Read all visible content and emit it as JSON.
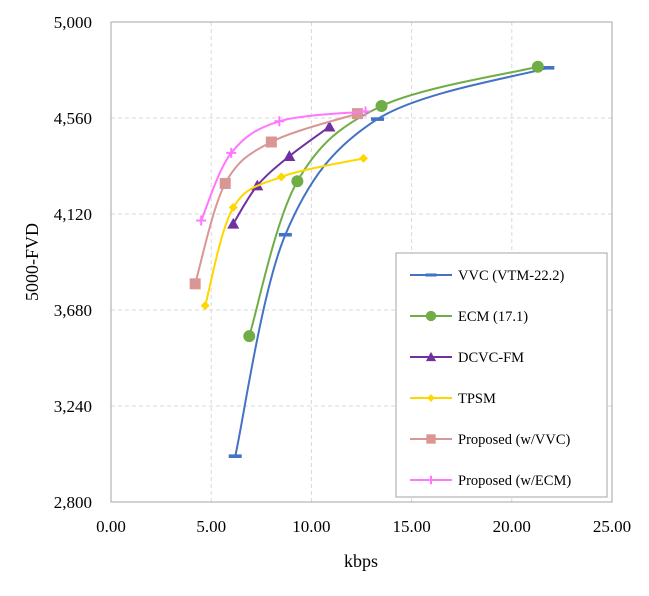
{
  "chart_data": {
    "type": "line",
    "title": "",
    "xlabel": "kbps",
    "ylabel": "5000-FVD",
    "xlim": [
      0,
      25
    ],
    "ylim": [
      2800,
      5000
    ],
    "xticks": [
      0,
      5,
      10,
      15,
      20,
      25
    ],
    "xtick_labels": [
      "0.00",
      "5.00",
      "10.00",
      "15.00",
      "20.00",
      "25.00"
    ],
    "yticks": [
      2800,
      3240,
      3680,
      4120,
      4560,
      5000
    ],
    "ytick_labels": [
      "2,800",
      "3,240",
      "3,680",
      "4,120",
      "4,560",
      "5,000"
    ],
    "grid": true,
    "legend_position": "lower-right",
    "series": [
      {
        "name": "VVC (VTM-22.2)",
        "color": "#4472c4",
        "marker": "dash",
        "x": [
          6.2,
          8.7,
          13.3,
          21.8
        ],
        "y": [
          3010,
          4025,
          4555,
          4790
        ]
      },
      {
        "name": "ECM (17.1)",
        "color": "#70ad47",
        "marker": "circle",
        "x": [
          6.9,
          9.3,
          13.5,
          21.3
        ],
        "y": [
          3560,
          4270,
          4615,
          4795
        ]
      },
      {
        "name": "DCVC-FM",
        "color": "#7030a0",
        "marker": "triangle",
        "x": [
          6.1,
          7.3,
          8.9,
          10.9
        ],
        "y": [
          4075,
          4250,
          4385,
          4520
        ]
      },
      {
        "name": "TPSM",
        "color": "#ffd700",
        "marker": "diamond",
        "x": [
          4.7,
          6.1,
          8.5,
          12.6
        ],
        "y": [
          3700,
          4150,
          4290,
          4375
        ]
      },
      {
        "name": "Proposed (w/VVC)",
        "color": "#d99694",
        "marker": "square",
        "x": [
          4.2,
          5.7,
          8.0,
          12.3
        ],
        "y": [
          3800,
          4260,
          4450,
          4580
        ]
      },
      {
        "name": "Proposed (w/ECM)",
        "color": "#ff77ff",
        "marker": "plus",
        "x": [
          4.5,
          6.0,
          8.4,
          12.7
        ],
        "y": [
          4090,
          4400,
          4545,
          4590
        ]
      }
    ]
  }
}
